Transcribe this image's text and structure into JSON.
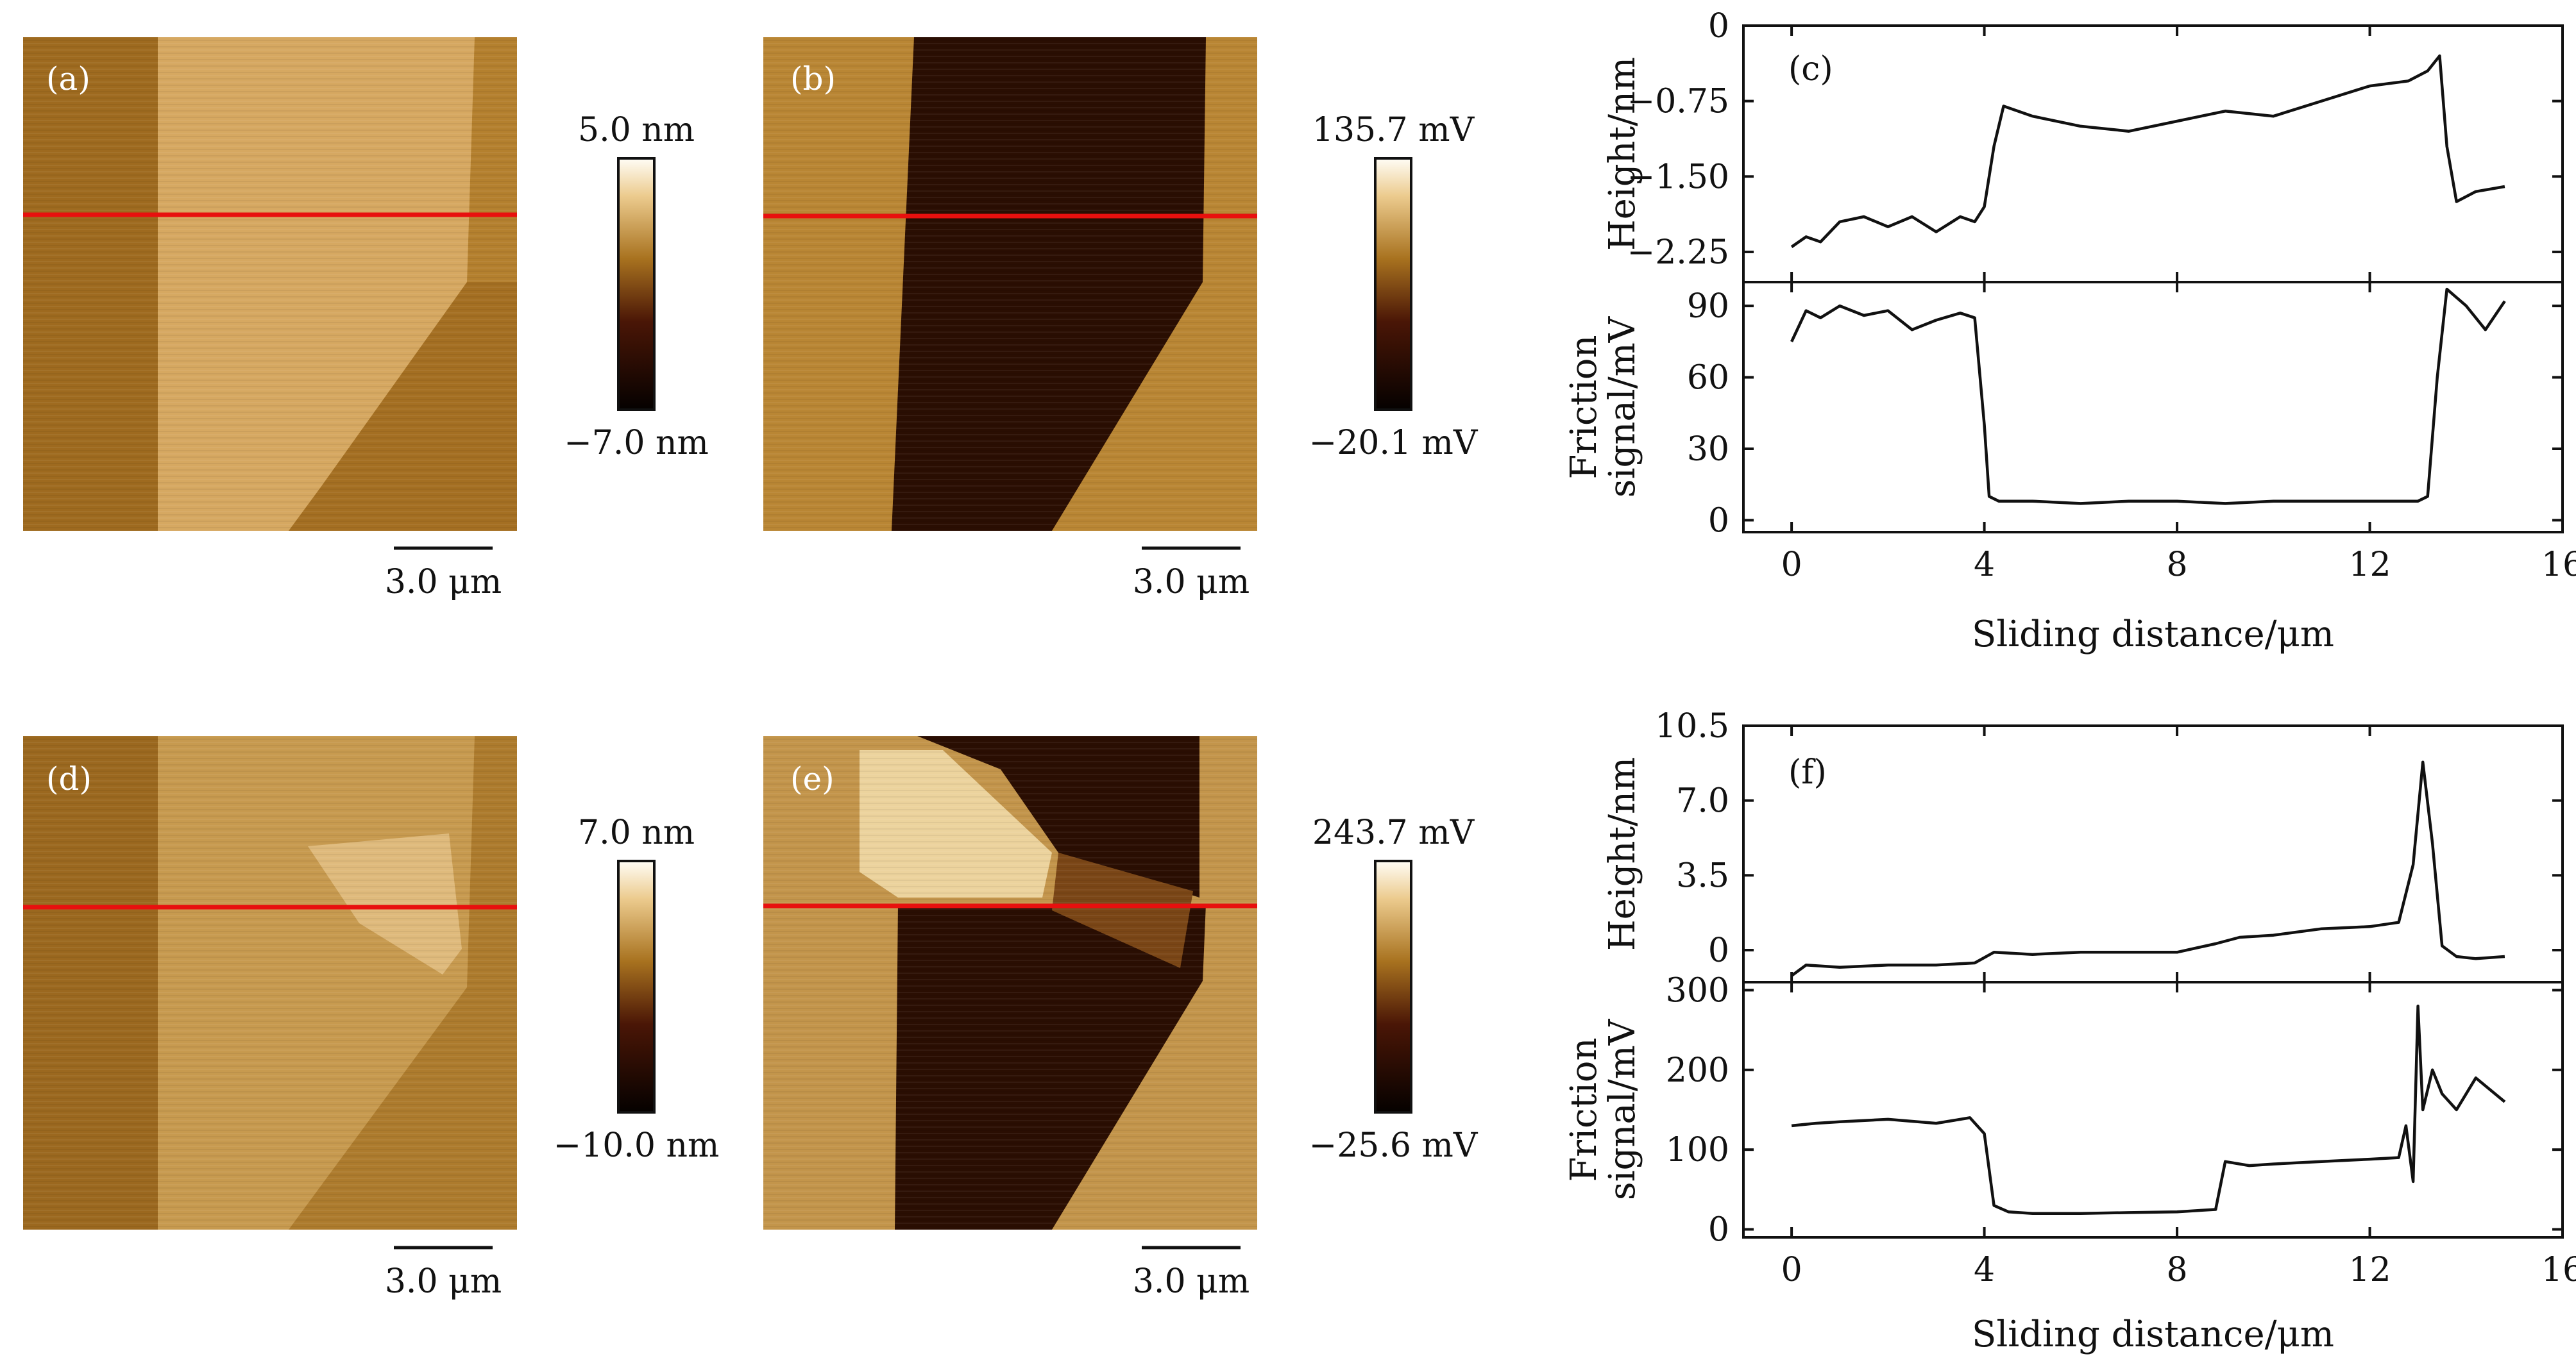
{
  "colors": {
    "afm_light": "#f3d39a",
    "afm_mid": "#b4802e",
    "afm_dark": "#2a0e02",
    "trace": "#111111",
    "profile_line": "#e8100e"
  },
  "afm_images": [
    {
      "label": "(a)",
      "scale_bar": "3.0 μm",
      "colorbar_top": "5.0 nm",
      "colorbar_bottom": "−7.0 nm",
      "kind": "height"
    },
    {
      "label": "(b)",
      "scale_bar": "3.0 μm",
      "colorbar_top": "135.7 mV",
      "colorbar_bottom": "−20.1 mV",
      "kind": "friction"
    },
    {
      "label": "(d)",
      "scale_bar": "3.0 μm",
      "colorbar_top": "7.0 nm",
      "colorbar_bottom": "−10.0 nm",
      "kind": "height"
    },
    {
      "label": "(e)",
      "scale_bar": "3.0 μm",
      "colorbar_top": "243.7 mV",
      "colorbar_bottom": "−25.6 mV",
      "kind": "friction"
    }
  ],
  "chart_data": [
    {
      "panel": "(c)",
      "type": "line",
      "xlabel": "Sliding distance/μm",
      "xlim": [
        -1,
        16
      ],
      "xticks": [
        0,
        4,
        8,
        12,
        16
      ],
      "subplots": [
        {
          "ylabel": "Height/nm",
          "ylim": [
            -2.55,
            0
          ],
          "yticks": [
            0,
            -0.75,
            -1.5,
            -2.25
          ],
          "ytick_labels": [
            "0",
            "−0.75",
            "−1.50",
            "−2.25"
          ],
          "series": [
            {
              "name": "height",
              "x": [
                0,
                0.3,
                0.6,
                1,
                1.5,
                2,
                2.5,
                3,
                3.5,
                3.8,
                4.0,
                4.2,
                4.4,
                5,
                6,
                7,
                8,
                9,
                10,
                11,
                12,
                12.8,
                13.2,
                13.45,
                13.6,
                13.8,
                14.2,
                14.8
              ],
              "y": [
                -2.2,
                -2.1,
                -2.15,
                -1.95,
                -1.9,
                -2.0,
                -1.9,
                -2.05,
                -1.9,
                -1.95,
                -1.8,
                -1.2,
                -0.8,
                -0.9,
                -1.0,
                -1.05,
                -0.95,
                -0.85,
                -0.9,
                -0.75,
                -0.6,
                -0.55,
                -0.45,
                -0.3,
                -1.2,
                -1.75,
                -1.65,
                -1.6
              ]
            }
          ]
        },
        {
          "ylabel_lines": [
            "Friction",
            "signal/mV"
          ],
          "ylim": [
            -5,
            100
          ],
          "yticks": [
            0,
            30,
            60,
            90
          ],
          "ytick_labels": [
            "0",
            "30",
            "60",
            "90"
          ],
          "series": [
            {
              "name": "friction",
              "x": [
                0,
                0.3,
                0.6,
                1,
                1.5,
                2,
                2.5,
                3,
                3.5,
                3.8,
                4.0,
                4.1,
                4.3,
                5,
                6,
                7,
                8,
                9,
                10,
                11,
                12,
                13,
                13.2,
                13.4,
                13.6,
                14,
                14.4,
                14.8
              ],
              "y": [
                75,
                88,
                85,
                90,
                86,
                88,
                80,
                84,
                87,
                85,
                40,
                10,
                8,
                8,
                7,
                8,
                8,
                7,
                8,
                8,
                8,
                8,
                10,
                60,
                97,
                90,
                80,
                92
              ]
            }
          ]
        }
      ]
    },
    {
      "panel": "(f)",
      "type": "line",
      "xlabel": "Sliding distance/μm",
      "xlim": [
        -1,
        16
      ],
      "xticks": [
        0,
        4,
        8,
        12,
        16
      ],
      "subplots": [
        {
          "ylabel": "Height/nm",
          "ylim": [
            -1.5,
            10.5
          ],
          "yticks": [
            0,
            3.5,
            7.0,
            10.5
          ],
          "ytick_labels": [
            "0",
            "3.5",
            "7.0",
            "10.5"
          ],
          "series": [
            {
              "name": "height",
              "x": [
                0,
                0.3,
                1,
                2,
                3,
                3.8,
                4.2,
                5,
                6,
                7,
                8,
                8.8,
                9.3,
                10,
                11,
                12,
                12.6,
                12.9,
                13.1,
                13.3,
                13.5,
                13.8,
                14.2,
                14.8
              ],
              "y": [
                -1.2,
                -0.7,
                -0.8,
                -0.7,
                -0.7,
                -0.6,
                -0.1,
                -0.2,
                -0.1,
                -0.1,
                -0.1,
                0.3,
                0.6,
                0.7,
                1.0,
                1.1,
                1.3,
                4.0,
                8.8,
                5.0,
                0.2,
                -0.3,
                -0.4,
                -0.3
              ]
            }
          ]
        },
        {
          "ylabel_lines": [
            "Friction",
            "signal/mV"
          ],
          "ylim": [
            -10,
            310
          ],
          "yticks": [
            0,
            100,
            200,
            300
          ],
          "ytick_labels": [
            "0",
            "100",
            "200",
            "300"
          ],
          "series": [
            {
              "name": "friction",
              "x": [
                0,
                0.5,
                1,
                2,
                3,
                3.7,
                4.0,
                4.2,
                4.5,
                5,
                6,
                7,
                8,
                8.8,
                9.0,
                9.5,
                10,
                11,
                12,
                12.6,
                12.75,
                12.9,
                13.0,
                13.1,
                13.3,
                13.5,
                13.8,
                14.2,
                14.8
              ],
              "y": [
                130,
                133,
                135,
                138,
                133,
                140,
                120,
                30,
                22,
                20,
                20,
                21,
                22,
                25,
                85,
                80,
                82,
                85,
                88,
                90,
                130,
                60,
                280,
                150,
                200,
                170,
                150,
                190,
                160
              ]
            }
          ]
        }
      ]
    }
  ]
}
